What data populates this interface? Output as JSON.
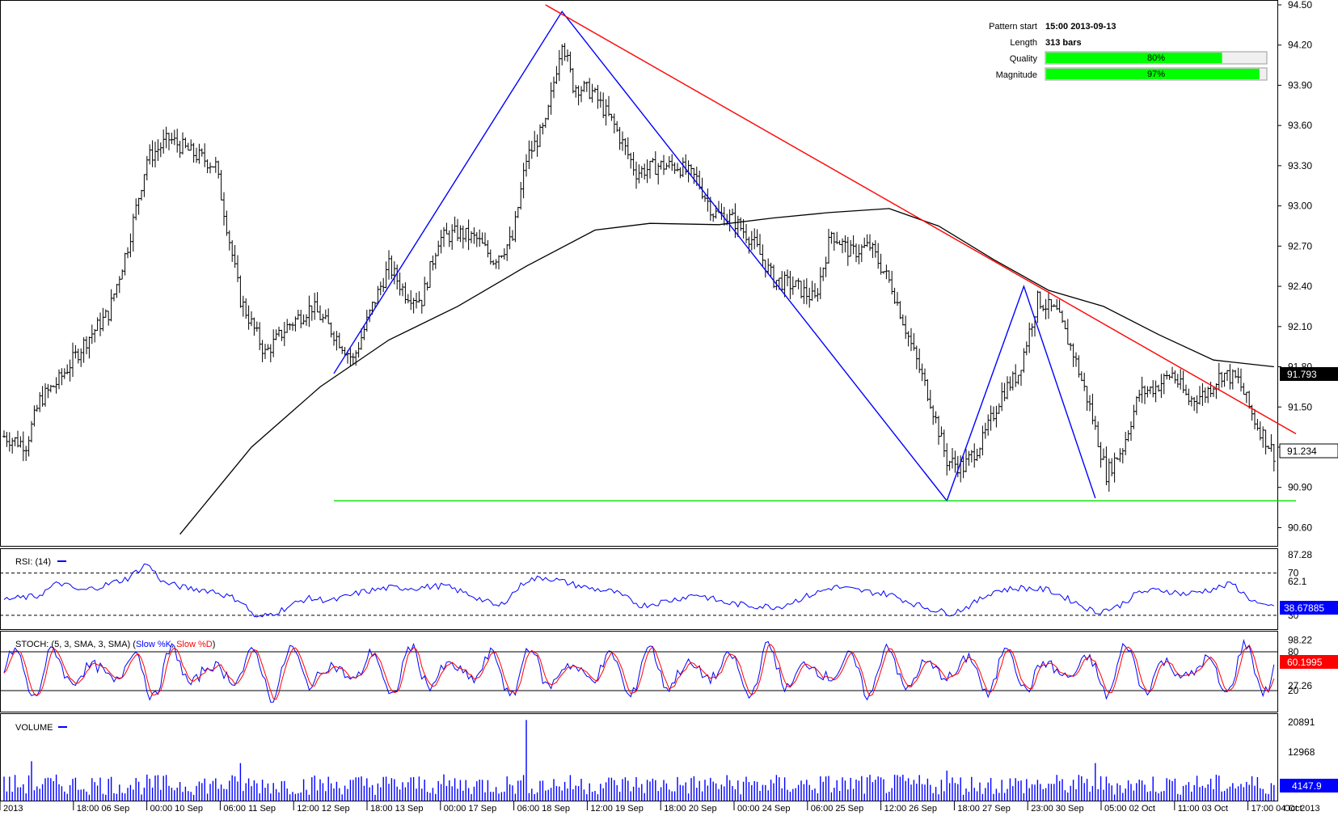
{
  "info_panel": {
    "pattern_start_label": "Pattern start",
    "pattern_start_value": "15:00 2013-09-13",
    "length_label": "Length",
    "length_value": "313 bars",
    "quality_label": "Quality",
    "quality_text": "80%",
    "quality_fraction": 0.8,
    "magnitude_label": "Magnitude",
    "magnitude_text": "97%",
    "magnitude_fraction": 0.97
  },
  "price_panel": {
    "last_price_badge": "91.793",
    "current_price_badge": "91.234"
  },
  "rsi_panel": {
    "title": "RSI: (14)",
    "badge": "38.67885"
  },
  "stoch_panel": {
    "title_prefix": "STOCH: (5, 3, SMA, 3, SMA) (",
    "k_label": "Slow %K",
    "separator": ", ",
    "d_label": "Slow %D",
    "title_suffix": ")",
    "badge": "60.1995"
  },
  "volume_panel": {
    "title": "VOLUME",
    "badge": "4147.9"
  },
  "colors": {
    "price_bar": "#000000",
    "pattern_line": "#0000ff",
    "resistance_line": "#ff0000",
    "support_line": "#00e000",
    "moving_average": "#000000",
    "rsi_line": "#0000ff",
    "stoch_k": "#0000ff",
    "stoch_d": "#ff0000",
    "volume_bar": "#0000ff",
    "gauge_fill": "#00ff00",
    "badge_dark": "#000000",
    "badge_blue": "#0000ff",
    "badge_red": "#ff0000"
  },
  "chart_data": [
    {
      "type": "bar",
      "subtype": "ohlc-price",
      "y_ticks": [
        "94.50",
        "94.20",
        "93.90",
        "93.60",
        "93.30",
        "93.00",
        "92.70",
        "92.40",
        "92.10",
        "91.80",
        "91.50",
        "91.20",
        "90.90",
        "90.60"
      ],
      "ylim": [
        90.5,
        94.5
      ],
      "x_ticks": [
        "2013",
        "18:00 06 Sep",
        "00:00 10 Sep",
        "06:00 11 Sep",
        "12:00 12 Sep",
        "18:00 13 Sep",
        "00:00 17 Sep",
        "06:00 18 Sep",
        "12:00 19 Sep",
        "18:00 20 Sep",
        "00:00 24 Sep",
        "06:00 25 Sep",
        "12:00 26 Sep",
        "18:00 27 Sep",
        "23:00 30 Sep",
        "05:00 02 Oct",
        "11:00 03 Oct",
        "17:00 04 Oct",
        "Oct 2013"
      ],
      "close_path": [
        [
          0,
          91.28
        ],
        [
          8,
          91.22
        ],
        [
          13,
          91.55
        ],
        [
          20,
          91.7
        ],
        [
          30,
          92.0
        ],
        [
          38,
          92.2
        ],
        [
          45,
          92.7
        ],
        [
          52,
          93.35
        ],
        [
          60,
          93.5
        ],
        [
          68,
          93.4
        ],
        [
          77,
          93.3
        ],
        [
          86,
          92.3
        ],
        [
          95,
          91.9
        ],
        [
          103,
          92.1
        ],
        [
          112,
          92.25
        ],
        [
          120,
          92.05
        ],
        [
          127,
          91.85
        ],
        [
          134,
          92.25
        ],
        [
          140,
          92.55
        ],
        [
          146,
          92.35
        ],
        [
          152,
          92.3
        ],
        [
          158,
          92.75
        ],
        [
          165,
          92.8
        ],
        [
          172,
          92.75
        ],
        [
          178,
          92.6
        ],
        [
          185,
          92.75
        ],
        [
          190,
          93.35
        ],
        [
          197,
          93.6
        ],
        [
          203,
          94.25
        ],
        [
          207,
          93.9
        ],
        [
          214,
          93.85
        ],
        [
          222,
          93.6
        ],
        [
          230,
          93.25
        ],
        [
          238,
          93.3
        ],
        [
          245,
          93.3
        ],
        [
          252,
          93.2
        ],
        [
          258,
          92.95
        ],
        [
          265,
          92.9
        ],
        [
          272,
          92.75
        ],
        [
          280,
          92.45
        ],
        [
          288,
          92.4
        ],
        [
          295,
          92.3
        ],
        [
          301,
          92.8
        ],
        [
          308,
          92.65
        ],
        [
          315,
          92.7
        ],
        [
          323,
          92.4
        ],
        [
          331,
          91.9
        ],
        [
          337,
          91.55
        ],
        [
          343,
          91.1
        ],
        [
          349,
          91.05
        ],
        [
          356,
          91.25
        ],
        [
          363,
          91.6
        ],
        [
          369,
          91.75
        ],
        [
          376,
          92.3
        ],
        [
          383,
          92.2
        ],
        [
          389,
          91.9
        ],
        [
          395,
          91.5
        ],
        [
          401,
          91.0
        ],
        [
          407,
          91.2
        ],
        [
          413,
          91.6
        ],
        [
          419,
          91.65
        ],
        [
          425,
          91.75
        ],
        [
          431,
          91.55
        ],
        [
          437,
          91.6
        ],
        [
          443,
          91.75
        ],
        [
          449,
          91.7
        ],
        [
          455,
          91.4
        ],
        [
          462,
          91.15
        ]
      ],
      "moving_average_path": [
        [
          64,
          90.55
        ],
        [
          90,
          91.2
        ],
        [
          115,
          91.65
        ],
        [
          140,
          92.0
        ],
        [
          165,
          92.25
        ],
        [
          190,
          92.55
        ],
        [
          215,
          92.82
        ],
        [
          235,
          92.87
        ],
        [
          260,
          92.86
        ],
        [
          280,
          92.91
        ],
        [
          300,
          92.95
        ],
        [
          322,
          92.98
        ],
        [
          340,
          92.85
        ],
        [
          360,
          92.6
        ],
        [
          380,
          92.37
        ],
        [
          400,
          92.25
        ],
        [
          420,
          92.04
        ],
        [
          440,
          91.85
        ],
        [
          462,
          91.8
        ]
      ],
      "annotations": {
        "pattern_zigzag": [
          [
            120,
            91.75
          ],
          [
            203,
            94.45
          ],
          [
            343,
            90.8
          ],
          [
            371,
            92.4
          ],
          [
            397,
            90.82
          ]
        ],
        "resistance_line": [
          [
            197,
            94.5
          ],
          [
            470,
            91.3
          ]
        ],
        "support_line": [
          [
            120,
            90.8
          ],
          [
            470,
            90.8
          ]
        ]
      }
    },
    {
      "type": "line",
      "subtype": "rsi",
      "title": "RSI: (14)",
      "y_ticks": [
        "87.28",
        "70",
        "62.1",
        "30"
      ],
      "levels": [
        70,
        30
      ],
      "ylim": [
        20,
        87.28
      ],
      "path": [
        [
          0,
          45
        ],
        [
          12,
          48
        ],
        [
          20,
          61
        ],
        [
          28,
          53
        ],
        [
          36,
          58
        ],
        [
          45,
          65
        ],
        [
          52,
          79
        ],
        [
          58,
          61
        ],
        [
          66,
          56
        ],
        [
          76,
          53
        ],
        [
          86,
          44
        ],
        [
          92,
          27
        ],
        [
          100,
          34
        ],
        [
          110,
          46
        ],
        [
          120,
          44
        ],
        [
          130,
          52
        ],
        [
          140,
          56
        ],
        [
          150,
          56
        ],
        [
          160,
          58
        ],
        [
          170,
          49
        ],
        [
          180,
          38
        ],
        [
          190,
          63
        ],
        [
          197,
          66
        ],
        [
          203,
          62
        ],
        [
          212,
          56
        ],
        [
          222,
          52
        ],
        [
          232,
          39
        ],
        [
          242,
          44
        ],
        [
          252,
          50
        ],
        [
          262,
          42
        ],
        [
          272,
          39
        ],
        [
          282,
          38
        ],
        [
          292,
          48
        ],
        [
          302,
          57
        ],
        [
          312,
          53
        ],
        [
          322,
          50
        ],
        [
          332,
          40
        ],
        [
          340,
          34
        ],
        [
          345,
          32
        ],
        [
          352,
          40
        ],
        [
          360,
          53
        ],
        [
          370,
          56
        ],
        [
          380,
          54
        ],
        [
          390,
          42
        ],
        [
          397,
          33
        ],
        [
          405,
          38
        ],
        [
          413,
          52
        ],
        [
          421,
          54
        ],
        [
          430,
          50
        ],
        [
          440,
          55
        ],
        [
          447,
          60
        ],
        [
          452,
          48
        ],
        [
          458,
          38
        ],
        [
          462,
          38.7
        ]
      ]
    },
    {
      "type": "line",
      "subtype": "stochastic",
      "title": "STOCH: (5, 3, SMA, 3, SMA)",
      "series_names": [
        "Slow %K",
        "Slow %D"
      ],
      "y_ticks": [
        "98.22",
        "80",
        "27.26",
        "20"
      ],
      "levels": [
        80,
        20
      ],
      "ylim": [
        0,
        100
      ],
      "last_value": 60.1995
    },
    {
      "type": "bar",
      "subtype": "volume",
      "title": "VOLUME",
      "y_ticks": [
        "20891",
        "12968",
        "4147.9"
      ],
      "ylim": [
        0,
        22000
      ],
      "last_value": 4147.9,
      "spikes": [
        [
          10,
          10500
        ],
        [
          86,
          10000
        ],
        [
          190,
          21500
        ],
        [
          343,
          8000
        ],
        [
          397,
          10000
        ]
      ]
    }
  ]
}
